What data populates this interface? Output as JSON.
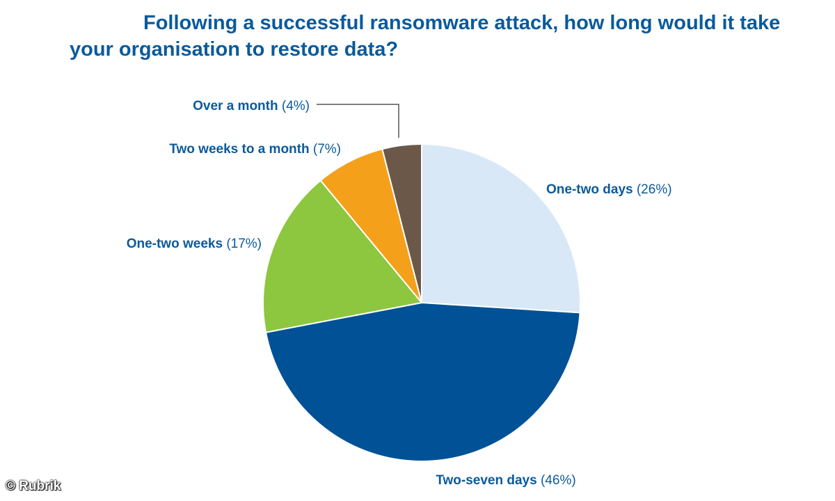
{
  "title_line1": "Following a successful ransomware attack, how long would it take",
  "title_line2": "your organisation to restore data?",
  "credit": "© Rubrik",
  "chart_data": {
    "type": "pie",
    "title": "Following a successful ransomware attack, how long would it take your organisation to restore data?",
    "slices": [
      {
        "label": "One-two days",
        "value": 26,
        "value_label": "(26%)",
        "color": "#d9e8f6"
      },
      {
        "label": "Two-seven days",
        "value": 46,
        "value_label": "(46%)",
        "color": "#005195"
      },
      {
        "label": "One-two weeks",
        "value": 17,
        "value_label": "(17%)",
        "color": "#8dc63f"
      },
      {
        "label": "Two weeks to a month",
        "value": 7,
        "value_label": "(7%)",
        "color": "#f5a01a"
      },
      {
        "label": "Over a month",
        "value": 4,
        "value_label": "(4%)",
        "color": "#6b5848"
      }
    ],
    "start_angle_deg": 0,
    "direction": "clockwise",
    "legend": "none"
  }
}
